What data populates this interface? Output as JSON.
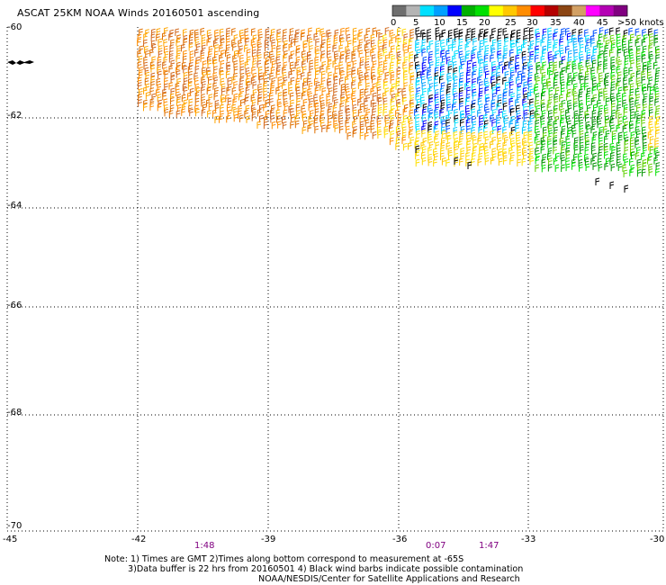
{
  "title": "ASCAT 25KM NOAA Winds 20160501 ascending",
  "legend": {
    "labels": [
      "0",
      "5",
      "10",
      "15",
      "20",
      "25",
      "30",
      "35",
      "40",
      "45",
      ">50 knots"
    ],
    "colors": [
      "#6e6e6e",
      "#b4b4b4",
      "#00e0ff",
      "#00a0ff",
      "#0000ff",
      "#00b000",
      "#00e000",
      "#ffff00",
      "#ffc800",
      "#ff8c00",
      "#ff0000",
      "#b40000",
      "#8b4513",
      "#d2a064",
      "#ff00ff",
      "#b400b4",
      "#800080"
    ]
  },
  "map": {
    "lat_labels": [
      "-60",
      "-62",
      "-64",
      "-66",
      "-68",
      "-70"
    ],
    "lon_labels": [
      "-45",
      "-42",
      "-39",
      "-36",
      "-33",
      "-30"
    ],
    "times": [
      "1:48",
      "0:07",
      "1:47"
    ]
  },
  "notes": {
    "line1": "Note: 1) Times are GMT 2)Times along bottom correspond to measurement at -65S",
    "line2": "3)Data buffer is 22 hrs from 20160501 4) Black wind barbs indicate possible contamination",
    "line3": "NOAA/NESDIS/Center for Satellite Applications and Research"
  }
}
